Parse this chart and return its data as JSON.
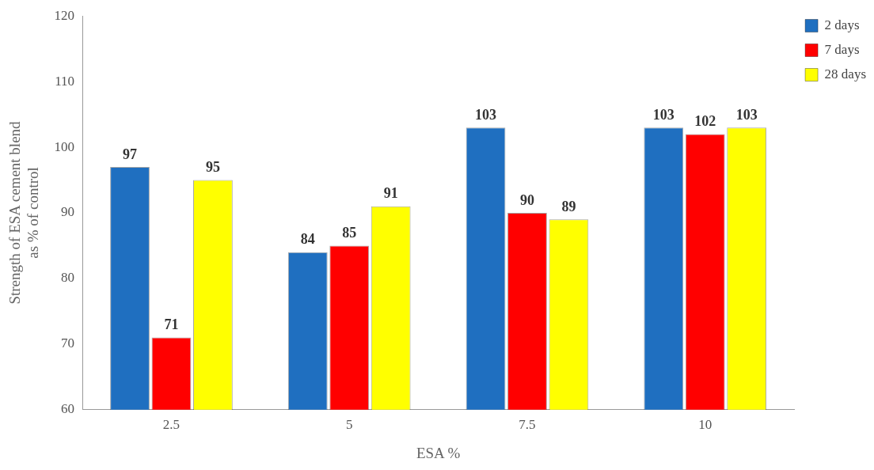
{
  "chart_data": {
    "type": "bar",
    "xlabel": "ESA %",
    "ylabel": "Strength of ESA cement blend\nas % of control",
    "categories": [
      "2.5",
      "5",
      "7.5",
      "10"
    ],
    "series": [
      {
        "name": "2 days",
        "color": "#1f6fc0",
        "values": [
          97,
          84,
          103,
          103
        ]
      },
      {
        "name": "7 days",
        "color": "#ff0000",
        "values": [
          71,
          85,
          90,
          102
        ]
      },
      {
        "name": "28 days",
        "color": "#ffff00",
        "values": [
          95,
          91,
          89,
          103
        ]
      }
    ],
    "ylim": [
      60,
      120
    ],
    "yticks": [
      60,
      70,
      80,
      90,
      100,
      110,
      120
    ],
    "grid": false,
    "legend": "top right",
    "data_labels": true
  }
}
